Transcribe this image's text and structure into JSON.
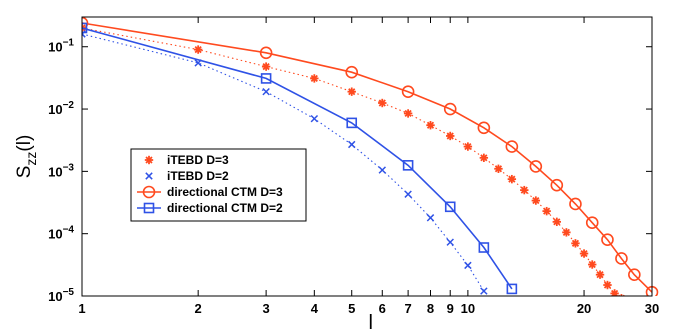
{
  "chart_data": {
    "type": "line",
    "x_scale": "log",
    "y_scale": "log",
    "xlim": [
      1,
      30
    ],
    "ylim": [
      1e-05,
      0.3
    ],
    "xlabel": "l",
    "ylabel": {
      "base": "S",
      "subscript": "zz",
      "suffix": "(l)"
    },
    "x_ticks": [
      {
        "value": 1,
        "label": "1"
      },
      {
        "value": 2,
        "label": "2"
      },
      {
        "value": 3,
        "label": "3"
      },
      {
        "value": 4,
        "label": "4"
      },
      {
        "value": 5,
        "label": "5"
      },
      {
        "value": 6,
        "label": "6"
      },
      {
        "value": 7,
        "label": "7"
      },
      {
        "value": 8,
        "label": "8"
      },
      {
        "value": 9,
        "label": "9"
      },
      {
        "value": 10,
        "label": "10"
      },
      {
        "value": 20,
        "label": "20"
      },
      {
        "value": 30,
        "label": "30"
      }
    ],
    "y_ticks": [
      {
        "value": 1e-05,
        "base": "10",
        "exp": "−5"
      },
      {
        "value": 0.0001,
        "base": "10",
        "exp": "−4"
      },
      {
        "value": 0.001,
        "base": "10",
        "exp": "−3"
      },
      {
        "value": 0.01,
        "base": "10",
        "exp": "−2"
      },
      {
        "value": 0.1,
        "base": "10",
        "exp": "−1"
      }
    ],
    "grid": false,
    "legend_position": "center-left",
    "series": [
      {
        "name": "iTEBD D=3",
        "color": "#ff4a1f",
        "marker": "asterisk",
        "line": "dotted",
        "x": [
          1,
          2,
          3,
          4,
          5,
          6,
          7,
          8,
          9,
          10,
          11,
          12,
          13,
          14,
          15,
          16,
          17,
          18,
          19,
          20,
          21,
          22,
          23,
          24,
          25
        ],
        "y": [
          0.2,
          0.09,
          0.048,
          0.031,
          0.019,
          0.0125,
          0.0085,
          0.0055,
          0.0037,
          0.0025,
          0.00165,
          0.0011,
          0.00075,
          0.0005,
          0.00034,
          0.00023,
          0.000155,
          0.000105,
          7e-05,
          4.8e-05,
          3.2e-05,
          2.2e-05,
          1.5e-05,
          1.1e-05,
          9.2e-06
        ]
      },
      {
        "name": "iTEBD D=2",
        "color": "#2f52e6",
        "marker": "x",
        "line": "dotted",
        "x": [
          1,
          2,
          3,
          4,
          5,
          6,
          7,
          8,
          9,
          10,
          11
        ],
        "y": [
          0.16,
          0.055,
          0.019,
          0.007,
          0.0027,
          0.00105,
          0.00043,
          0.00018,
          7.3e-05,
          3.1e-05,
          1.2e-05
        ]
      },
      {
        "name": "directional CTM D=3",
        "color": "#ff4a1f",
        "marker": "circle",
        "line": "solid",
        "x": [
          1,
          3,
          5,
          7,
          9,
          11,
          13,
          15,
          17,
          19,
          21,
          23,
          25,
          27,
          30
        ],
        "y": [
          0.24,
          0.08,
          0.039,
          0.019,
          0.01,
          0.005,
          0.0025,
          0.0012,
          0.0006,
          0.0003,
          0.00015,
          8e-05,
          4e-05,
          2.2e-05,
          1.15e-05
        ]
      },
      {
        "name": "directional CTM D=2",
        "color": "#2f52e6",
        "marker": "square",
        "line": "solid",
        "x": [
          1,
          3,
          5,
          7,
          9,
          11,
          13
        ],
        "y": [
          0.2,
          0.031,
          0.006,
          0.00125,
          0.00027,
          6e-05,
          1.3e-05
        ]
      }
    ]
  }
}
